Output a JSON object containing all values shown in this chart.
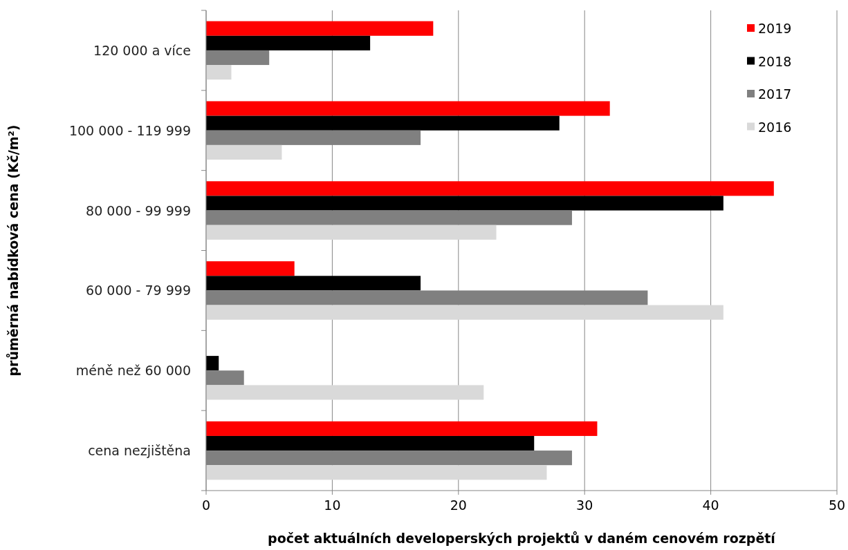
{
  "chart_data": {
    "type": "bar",
    "orientation": "horizontal",
    "xlabel": "počet aktuálních developerských projektů v daném cenovém rozpětí",
    "ylabel": "průměrná nabídková cena (Kč/m²)",
    "categories": [
      "120 000 a více",
      "100 000 - 119 999",
      "80 000 - 99 999",
      "60 000 - 79 999",
      "méně než 60 000",
      "cena nezjištěna"
    ],
    "series": [
      {
        "name": "2019",
        "color": "#ff0000",
        "values": [
          18,
          32,
          45,
          7,
          0,
          31
        ]
      },
      {
        "name": "2018",
        "color": "#000000",
        "values": [
          13,
          28,
          41,
          17,
          1,
          26
        ]
      },
      {
        "name": "2017",
        "color": "#808080",
        "values": [
          5,
          17,
          29,
          35,
          3,
          29
        ]
      },
      {
        "name": "2016",
        "color": "#d9d9d9",
        "values": [
          2,
          6,
          23,
          41,
          22,
          27
        ]
      }
    ],
    "xlim": [
      0,
      50
    ],
    "xticks": [
      0,
      10,
      20,
      30,
      40,
      50
    ],
    "grid": "x",
    "legend": "top right"
  }
}
